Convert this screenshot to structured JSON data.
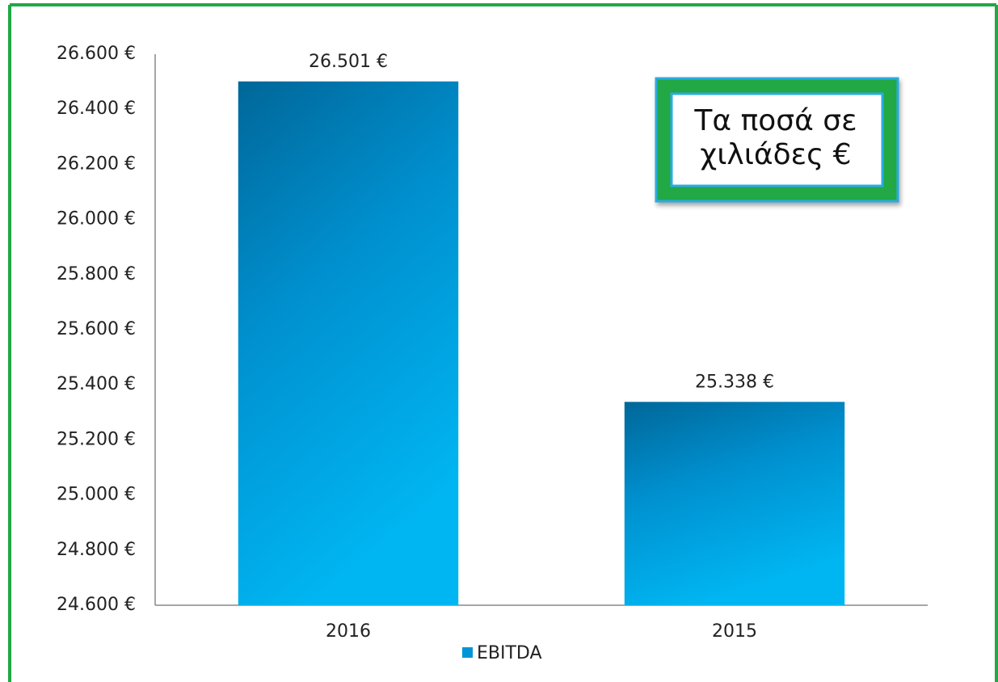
{
  "chart_data": {
    "type": "bar",
    "categories": [
      "2016",
      "2015"
    ],
    "series": [
      {
        "name": "EBITDA",
        "color": "#0095d6",
        "values": [
          26501,
          25338
        ]
      }
    ],
    "value_labels": [
      "26.501 €",
      "25.338 €"
    ],
    "ylim": [
      24600,
      26600
    ],
    "yticks": [
      {
        "value": 24600,
        "label": "24.600 €"
      },
      {
        "value": 24800,
        "label": "24.800 €"
      },
      {
        "value": 25000,
        "label": "25.000 €"
      },
      {
        "value": 25200,
        "label": "25.200 €"
      },
      {
        "value": 25400,
        "label": "25.400 €"
      },
      {
        "value": 25600,
        "label": "25.600 €"
      },
      {
        "value": 25800,
        "label": "25.800 €"
      },
      {
        "value": 26000,
        "label": "26.000 €"
      },
      {
        "value": 26200,
        "label": "26.200 €"
      },
      {
        "value": 26400,
        "label": "26.400 €"
      },
      {
        "value": 26600,
        "label": "26.600 €"
      }
    ],
    "grid": false,
    "legend": "bottom",
    "annotation": [
      "Τα ποσά σε",
      "χιλιάδες €"
    ]
  }
}
